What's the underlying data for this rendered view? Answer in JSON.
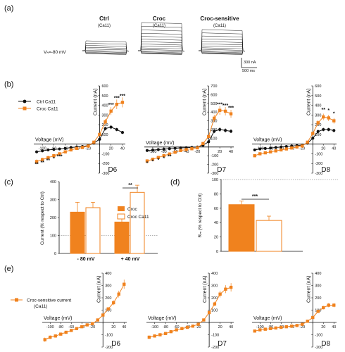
{
  "colors": {
    "ctrl": "#111111",
    "croc": "#f0821e",
    "axis": "#111111",
    "dotted": "#666666"
  },
  "figure": {
    "panel_labels": [
      "(a)",
      "(b)",
      "(c)",
      "(d)",
      "(e)"
    ],
    "a": {
      "titles": [
        {
          "main": "Ctrl",
          "sub": "(Ca11)"
        },
        {
          "main": "Croc",
          "sub": "(Ca11)"
        },
        {
          "main": "Croc-sensitive",
          "sub": "(Ca11)"
        }
      ],
      "holding": "Vₕ=-80 mV",
      "scale_y": "300 nA",
      "scale_x": "500 ms"
    },
    "b_legend": [
      "Ctrl Ca11",
      "Croc Ca11"
    ],
    "e_legend": [
      "Croc-sensitive current",
      "(Ca11)"
    ]
  },
  "chart_data": [
    {
      "panel": "b",
      "type": "line",
      "title": "D6",
      "xlabel": "Voltage (mV)",
      "ylabel": "Current (nA)",
      "xticks": [
        -100,
        -80,
        -60,
        -40,
        -20,
        0,
        20,
        40
      ],
      "yticks": [
        -300,
        -200,
        -100,
        100,
        200,
        300,
        400,
        500,
        600
      ],
      "xlim": [
        -115,
        45
      ],
      "ylim": [
        -300,
        600
      ],
      "x": [
        -110,
        -100,
        -90,
        -80,
        -70,
        -60,
        -50,
        -40,
        -30,
        -20,
        -10,
        0,
        10,
        20,
        30,
        40
      ],
      "series": [
        {
          "name": "Ctrl Ca11",
          "values": [
            -80,
            -70,
            -60,
            -55,
            -50,
            -45,
            -35,
            -30,
            -25,
            -15,
            10,
            50,
            160,
            175,
            150,
            120
          ]
        },
        {
          "name": "Croc Ca11",
          "values": [
            -180,
            -160,
            -140,
            -120,
            -100,
            -80,
            -60,
            -45,
            -35,
            -20,
            20,
            100,
            230,
            340,
            410,
            430
          ]
        }
      ],
      "annotations": [
        "**",
        "**",
        "**",
        "*",
        "***",
        "***",
        "***",
        "***"
      ]
    },
    {
      "panel": "b",
      "type": "line",
      "title": "D7",
      "xlabel": "Voltage (mV)",
      "ylabel": "Current (nA)",
      "xticks": [
        -100,
        -80,
        -60,
        -40,
        -20,
        0,
        20,
        40
      ],
      "yticks": [
        -300,
        -200,
        -100,
        100,
        200,
        300,
        400,
        500,
        600,
        700
      ],
      "xlim": [
        -115,
        45
      ],
      "ylim": [
        -300,
        700
      ],
      "x": [
        -110,
        -100,
        -90,
        -80,
        -70,
        -60,
        -50,
        -40,
        -30,
        -20,
        -10,
        0,
        10,
        20,
        30,
        40
      ],
      "series": [
        {
          "name": "Ctrl Ca11",
          "values": [
            -40,
            -35,
            -30,
            -25,
            -20,
            -15,
            -10,
            -8,
            -5,
            0,
            20,
            60,
            180,
            200,
            190,
            180
          ]
        },
        {
          "name": "Croc Ca11",
          "values": [
            -160,
            -140,
            -120,
            -100,
            -80,
            -60,
            -40,
            -30,
            -20,
            -10,
            40,
            120,
            330,
            420,
            410,
            380
          ]
        }
      ],
      "annotations": [
        "*",
        "*",
        "*",
        "*",
        "**",
        "***",
        "***",
        "***"
      ]
    },
    {
      "panel": "b",
      "type": "line",
      "title": "D8",
      "xlabel": "Voltage (mV)",
      "ylabel": "Current (nA)",
      "xticks": [
        -100,
        -80,
        -60,
        -40,
        -20,
        0,
        20,
        40
      ],
      "yticks": [
        -300,
        -200,
        -100,
        100,
        200,
        300,
        400,
        500,
        600
      ],
      "xlim": [
        -115,
        45
      ],
      "ylim": [
        -300,
        600
      ],
      "x": [
        -110,
        -100,
        -90,
        -80,
        -70,
        -60,
        -50,
        -40,
        -30,
        -20,
        -10,
        0,
        10,
        20,
        30,
        40
      ],
      "series": [
        {
          "name": "Ctrl Ca11",
          "values": [
            -60,
            -50,
            -45,
            -40,
            -35,
            -30,
            -25,
            -20,
            -15,
            -10,
            10,
            60,
            130,
            150,
            150,
            140
          ]
        },
        {
          "name": "Croc Ca11",
          "values": [
            -120,
            -100,
            -90,
            -80,
            -70,
            -60,
            -50,
            -40,
            -30,
            -20,
            20,
            110,
            220,
            280,
            270,
            240
          ]
        }
      ],
      "annotations": [
        "**",
        "*",
        "*"
      ]
    },
    {
      "panel": "c",
      "type": "bar",
      "ylabel": "Current (% respect to Ctrl)",
      "categories": [
        "- 80 mV",
        "+ 40 mV"
      ],
      "yticks": [
        0,
        100,
        200,
        300,
        400
      ],
      "ylim": [
        0,
        400
      ],
      "series": [
        {
          "name": "Croc",
          "values": [
            230,
            175
          ],
          "errors": [
            55,
            35
          ]
        },
        {
          "name": "Croc Ca11",
          "values": [
            255,
            340
          ],
          "errors": [
            30,
            40
          ]
        }
      ],
      "annotations": [
        "**"
      ]
    },
    {
      "panel": "d",
      "type": "bar",
      "ylabel": "Rₘ (% respect to Ctrl)",
      "yticks": [
        0,
        20,
        40,
        60,
        80,
        100
      ],
      "ylim": [
        0,
        100
      ],
      "series": [
        {
          "values": [
            65,
            43
          ],
          "errors": [
            5,
            6
          ]
        }
      ],
      "annotations": [
        "***"
      ]
    },
    {
      "panel": "e",
      "type": "line",
      "title": "D6",
      "xlabel": "Voltage (mV)",
      "ylabel": "Current (nA)",
      "xticks": [
        -100,
        -80,
        -60,
        -40,
        -20,
        0,
        20,
        40
      ],
      "yticks": [
        -200,
        -100,
        100,
        200,
        300,
        400
      ],
      "xlim": [
        -115,
        45
      ],
      "ylim": [
        -200,
        400
      ],
      "x": [
        -110,
        -100,
        -90,
        -80,
        -70,
        -60,
        -50,
        -40,
        -30,
        -20,
        -10,
        0,
        10,
        20,
        30,
        40
      ],
      "series": [
        {
          "name": "Croc-sensitive current",
          "values": [
            -140,
            -120,
            -110,
            -95,
            -80,
            -65,
            -50,
            -35,
            -20,
            -10,
            20,
            60,
            110,
            160,
            230,
            310
          ]
        }
      ]
    },
    {
      "panel": "e",
      "type": "line",
      "title": "D7",
      "xlabel": "Voltage (mV)",
      "ylabel": "Current (nA)",
      "xticks": [
        -100,
        -80,
        -60,
        -40,
        -20,
        0,
        20,
        40
      ],
      "yticks": [
        -200,
        -100,
        100,
        200,
        300,
        400
      ],
      "xlim": [
        -115,
        45
      ],
      "ylim": [
        -200,
        400
      ],
      "x": [
        -110,
        -100,
        -90,
        -80,
        -70,
        -60,
        -50,
        -40,
        -30,
        -20,
        -10,
        0,
        10,
        20,
        30,
        40
      ],
      "series": [
        {
          "name": "Croc-sensitive current",
          "values": [
            -120,
            -110,
            -100,
            -90,
            -75,
            -60,
            -50,
            -40,
            -30,
            -15,
            20,
            80,
            150,
            230,
            270,
            285
          ]
        }
      ]
    },
    {
      "panel": "e",
      "type": "line",
      "title": "D8",
      "xlabel": "Voltage (mV)",
      "ylabel": "Current (nA)",
      "xticks": [
        -100,
        -80,
        -60,
        -40,
        -20,
        0,
        20,
        40
      ],
      "yticks": [
        -200,
        -100,
        100,
        200,
        300,
        400
      ],
      "xlim": [
        -115,
        45
      ],
      "ylim": [
        -200,
        400
      ],
      "x": [
        -110,
        -100,
        -90,
        -80,
        -70,
        -60,
        -50,
        -40,
        -30,
        -20,
        -10,
        0,
        10,
        20,
        30,
        40
      ],
      "series": [
        {
          "name": "Croc-sensitive current",
          "values": [
            -70,
            -60,
            -55,
            -50,
            -45,
            -40,
            -35,
            -30,
            -25,
            -15,
            10,
            40,
            90,
            120,
            140,
            140
          ]
        }
      ]
    }
  ]
}
